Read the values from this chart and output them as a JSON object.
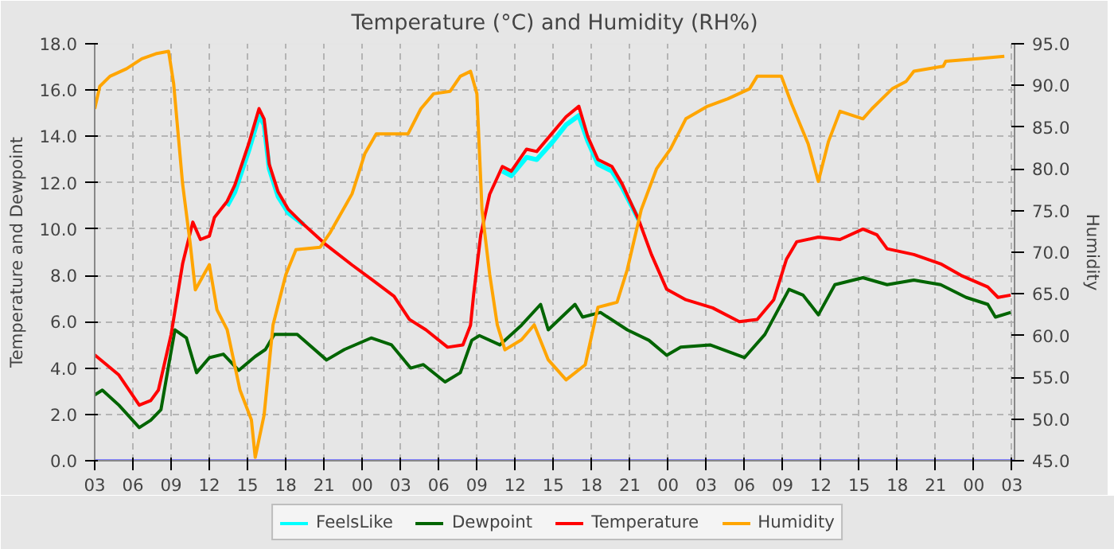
{
  "chart_data": {
    "type": "line",
    "title": "Temperature (°C) and Humidity (RH%)",
    "ylabel": "Temperature and Dewpoint",
    "y2label": "Humidity",
    "xlim": [
      3,
      75.2
    ],
    "ylim": [
      0,
      18
    ],
    "y2lim": [
      45,
      95
    ],
    "xticks": [
      {
        "value": 3,
        "label": "03"
      },
      {
        "value": 6,
        "label": "06"
      },
      {
        "value": 9,
        "label": "09"
      },
      {
        "value": 12,
        "label": "12"
      },
      {
        "value": 15,
        "label": "15"
      },
      {
        "value": 18,
        "label": "18"
      },
      {
        "value": 21,
        "label": "21"
      },
      {
        "value": 24,
        "label": "00"
      },
      {
        "value": 27,
        "label": "03"
      },
      {
        "value": 30,
        "label": "06"
      },
      {
        "value": 33,
        "label": "09"
      },
      {
        "value": 36,
        "label": "12"
      },
      {
        "value": 39,
        "label": "15"
      },
      {
        "value": 42,
        "label": "18"
      },
      {
        "value": 45,
        "label": "21"
      },
      {
        "value": 48,
        "label": "00"
      },
      {
        "value": 51,
        "label": "03"
      },
      {
        "value": 54,
        "label": "06"
      },
      {
        "value": 57,
        "label": "09"
      },
      {
        "value": 60,
        "label": "12"
      },
      {
        "value": 63,
        "label": "15"
      },
      {
        "value": 66,
        "label": "18"
      },
      {
        "value": 69,
        "label": "21"
      },
      {
        "value": 72,
        "label": "00"
      },
      {
        "value": 75,
        "label": "03"
      }
    ],
    "yticks": [
      {
        "value": 0,
        "label": "0.0"
      },
      {
        "value": 2,
        "label": "2.0"
      },
      {
        "value": 4,
        "label": "4.0"
      },
      {
        "value": 6,
        "label": "6.0"
      },
      {
        "value": 8,
        "label": "8.0"
      },
      {
        "value": 10,
        "label": "10.0"
      },
      {
        "value": 12,
        "label": "12.0"
      },
      {
        "value": 14,
        "label": "14.0"
      },
      {
        "value": 16,
        "label": "16.0"
      },
      {
        "value": 18,
        "label": "18.0"
      }
    ],
    "y2ticks": [
      {
        "value": 45,
        "label": "45.0"
      },
      {
        "value": 50,
        "label": "50.0"
      },
      {
        "value": 55,
        "label": "55.0"
      },
      {
        "value": 60,
        "label": "60.0"
      },
      {
        "value": 65,
        "label": "65.0"
      },
      {
        "value": 70,
        "label": "70.0"
      },
      {
        "value": 75,
        "label": "75.0"
      },
      {
        "value": 80,
        "label": "80.0"
      },
      {
        "value": 85,
        "label": "85.0"
      },
      {
        "value": 90,
        "label": "90.0"
      },
      {
        "value": 95,
        "label": "95.0"
      }
    ],
    "grid": true,
    "legend": "bottom",
    "series": [
      {
        "color": "#8080ff",
        "x": [
          3,
          75.2
        ],
        "values": [
          0,
          0
        ]
      },
      {
        "name": "FeelsLike",
        "color": "#00ffff",
        "x": [
          13.4,
          14,
          15.1,
          15.9,
          16.3,
          16.7,
          17.4,
          18.2,
          19.4,
          27,
          35,
          35.7,
          36.9,
          37.7,
          39,
          40,
          41,
          41.7,
          42.5,
          43.6,
          44.4,
          45.7
        ],
        "values": [
          11.0,
          11.6,
          13.4,
          14.9,
          14.5,
          12.6,
          11.4,
          10.7,
          10.2,
          null,
          12.5,
          12.3,
          13.1,
          13.0,
          13.8,
          14.5,
          14.9,
          13.8,
          12.8,
          12.5,
          11.8,
          10.4
        ]
      },
      {
        "name": "Dewpoint",
        "color": "#006400",
        "x": [
          3,
          3.6,
          4.9,
          6.5,
          7.4,
          8.2,
          8.8,
          9.3,
          10.2,
          11,
          12,
          13.1,
          14.3,
          15.6,
          16.4,
          17.1,
          18.9,
          21.2,
          22.6,
          24.7,
          26.3,
          27.8,
          28.8,
          30.5,
          31.7,
          32.6,
          33.2,
          34.8,
          36.5,
          38,
          38.6,
          40.7,
          41.3,
          42.7,
          44.8,
          46.5,
          47.9,
          49,
          51.3,
          54,
          55.6,
          57.5,
          58.6,
          59.8,
          61.1,
          63.3,
          65.2,
          67.3,
          69.4,
          71.4,
          73.1,
          73.7,
          74.9
        ],
        "values": [
          2.84,
          3.05,
          2.4,
          1.43,
          1.75,
          2.2,
          4.1,
          5.65,
          5.3,
          3.8,
          4.45,
          4.6,
          3.9,
          4.5,
          4.8,
          5.45,
          5.45,
          4.35,
          4.8,
          5.3,
          5.0,
          4.0,
          4.15,
          3.4,
          3.8,
          5.2,
          5.4,
          5.0,
          5.85,
          6.75,
          5.65,
          6.75,
          6.2,
          6.4,
          5.65,
          5.2,
          4.55,
          4.9,
          5.0,
          4.45,
          5.45,
          7.4,
          7.15,
          6.3,
          7.6,
          7.9,
          7.6,
          7.8,
          7.6,
          7.05,
          6.75,
          6.2,
          6.4
        ]
      },
      {
        "name": "Temperature",
        "color": "#ff0000",
        "x": [
          3,
          4.9,
          6.5,
          7.4,
          8,
          9,
          9.9,
          10.7,
          11.3,
          12,
          12.4,
          13.4,
          14,
          15.1,
          15.9,
          16.3,
          16.7,
          17.4,
          18.2,
          19.4,
          21.1,
          23.2,
          24.8,
          26.5,
          27.7,
          29,
          30.7,
          31.9,
          32.5,
          32.75,
          33.3,
          34,
          35,
          35.7,
          36.9,
          37.7,
          39,
          40,
          41,
          41.7,
          42.5,
          43.6,
          44.4,
          45.7,
          46.7,
          47.9,
          49.4,
          51.5,
          53.6,
          55,
          56.3,
          57.3,
          58.1,
          59.8,
          61.5,
          63.3,
          64.4,
          65.2,
          67.3,
          69.4,
          71,
          73.1,
          73.9,
          74.9
        ],
        "values": [
          4.57,
          3.7,
          2.4,
          2.6,
          3.05,
          5.45,
          8.5,
          10.3,
          9.55,
          9.7,
          10.5,
          11.2,
          11.9,
          13.7,
          15.2,
          14.75,
          12.8,
          11.6,
          10.85,
          10.2,
          9.35,
          8.45,
          7.8,
          7.1,
          6.1,
          5.65,
          4.9,
          5.0,
          5.85,
          7.2,
          9.75,
          11.5,
          12.7,
          12.5,
          13.45,
          13.35,
          14.2,
          14.85,
          15.3,
          14.0,
          13.0,
          12.7,
          11.95,
          10.4,
          8.9,
          7.4,
          6.95,
          6.6,
          6.0,
          6.1,
          6.95,
          8.7,
          9.45,
          9.65,
          9.55,
          10.0,
          9.75,
          9.15,
          8.9,
          8.5,
          8.0,
          7.5,
          7.05,
          7.15
        ]
      },
      {
        "name": "Humidity",
        "color": "#ffa500",
        "axis": "y2",
        "x": [
          3,
          3.4,
          4.2,
          5.5,
          6.7,
          7.8,
          8.8,
          9.2,
          9.9,
          10.5,
          10.9,
          12,
          12.6,
          13.4,
          14.4,
          15.3,
          15.6,
          16.3,
          17,
          18,
          18.8,
          20.7,
          21.5,
          23.2,
          24.2,
          25.1,
          27.6,
          28.6,
          29.6,
          30.9,
          31.7,
          32.5,
          33,
          33.4,
          34,
          34.6,
          35.2,
          36.5,
          37.5,
          38.6,
          40,
          41.5,
          42.5,
          44,
          44.8,
          45.9,
          47.1,
          48.2,
          49.4,
          51.1,
          52.7,
          54.4,
          55,
          56.9,
          57.7,
          59,
          59.8,
          60.6,
          61.5,
          63.3,
          64,
          64.8,
          65.6,
          66.7,
          67.3,
          69.6,
          69.8,
          72.3,
          74.4
        ],
        "values": [
          87.2,
          89.9,
          91.1,
          92.0,
          93.2,
          93.8,
          94.1,
          90.2,
          78.2,
          71.0,
          65.5,
          68.5,
          63.1,
          60.7,
          53.5,
          49.9,
          45.4,
          50.5,
          61.3,
          67.3,
          70.3,
          70.6,
          72.4,
          77.0,
          81.8,
          84.2,
          84.2,
          87.2,
          89.0,
          89.3,
          91.1,
          91.7,
          89.0,
          75.1,
          67.4,
          61.3,
          58.3,
          59.5,
          61.3,
          57.1,
          54.7,
          56.5,
          63.4,
          64.0,
          67.9,
          75.1,
          80.0,
          82.4,
          86.0,
          87.5,
          88.4,
          89.6,
          91.1,
          91.1,
          87.8,
          83.0,
          78.5,
          83.3,
          86.9,
          86.0,
          87.2,
          88.4,
          89.6,
          90.5,
          91.7,
          92.3,
          92.9,
          93.2,
          93.5
        ]
      }
    ]
  }
}
